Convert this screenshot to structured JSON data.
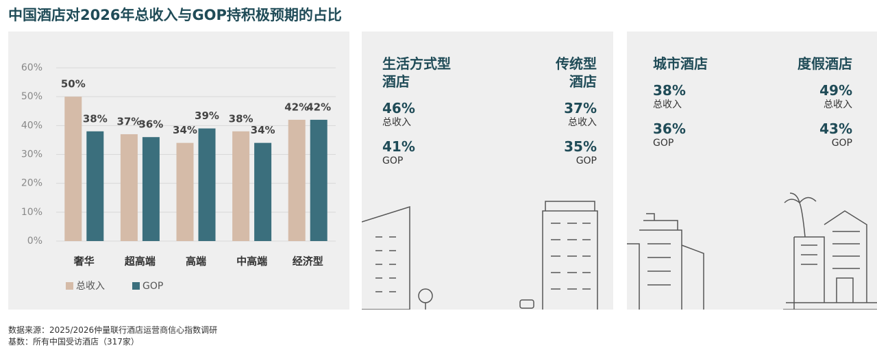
{
  "title": "中国酒店对2026年总收入与GOP持积极预期的占比",
  "chart_data": {
    "type": "bar",
    "categories": [
      "奢华",
      "超高端",
      "高端",
      "中高端",
      "经济型"
    ],
    "series": [
      {
        "name": "总收入",
        "color": "#d5bba8",
        "values": [
          50,
          37,
          34,
          38,
          42
        ],
        "value_labels": [
          "50%",
          "37%",
          "34%",
          "38%",
          "42%"
        ]
      },
      {
        "name": "GOP",
        "color": "#3b6f7d",
        "values": [
          38,
          36,
          39,
          34,
          42
        ],
        "value_labels": [
          "38%",
          "36%",
          "39%",
          "34%",
          "42%"
        ]
      }
    ],
    "ylim": [
      0,
      60
    ],
    "yticks": [
      {
        "value": 0,
        "label": "0%"
      },
      {
        "value": 10,
        "label": "10%"
      },
      {
        "value": 20,
        "label": "20%"
      },
      {
        "value": 30,
        "label": "30%"
      },
      {
        "value": 40,
        "label": "40%"
      },
      {
        "value": 50,
        "label": "50%"
      },
      {
        "value": 60,
        "label": "60%"
      }
    ],
    "grid": true,
    "legend": "bottom-left"
  },
  "panels": [
    {
      "groups": [
        {
          "heading": [
            "生活方式型",
            "酒店"
          ],
          "items": [
            {
              "value": "46%",
              "label": "总收入"
            },
            {
              "value": "41%",
              "label": "GOP"
            }
          ]
        },
        {
          "heading": [
            "传统型",
            "酒店"
          ],
          "items": [
            {
              "value": "37%",
              "label": "总收入"
            },
            {
              "value": "35%",
              "label": "GOP"
            }
          ]
        }
      ]
    },
    {
      "groups": [
        {
          "heading": [
            "城市酒店"
          ],
          "items": [
            {
              "value": "38%",
              "label": "总收入"
            },
            {
              "value": "36%",
              "label": "GOP"
            }
          ]
        },
        {
          "heading": [
            "度假酒店"
          ],
          "items": [
            {
              "value": "49%",
              "label": "总收入"
            },
            {
              "value": "43%",
              "label": "GOP"
            }
          ]
        }
      ]
    }
  ],
  "footnotes": [
    "数据来源：2025/2026仲量联行酒店运营商信心指数调研",
    "基数：所有中国受访酒店（317家）"
  ]
}
